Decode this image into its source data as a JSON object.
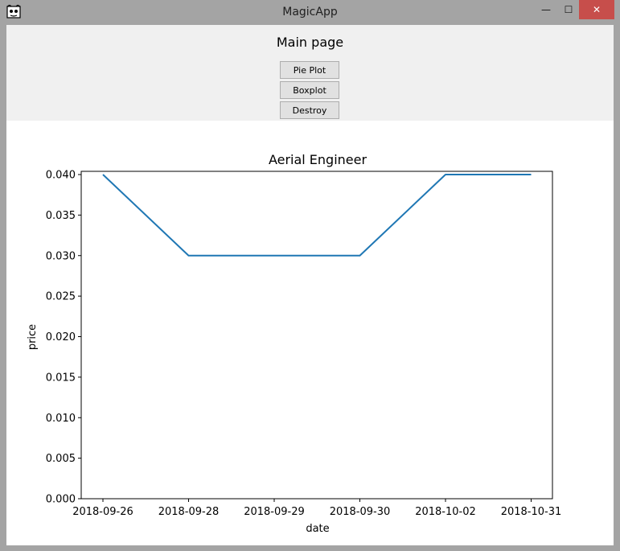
{
  "window": {
    "title": "MagicApp",
    "minimize_glyph": "—",
    "maximize_glyph": "☐",
    "close_glyph": "✕"
  },
  "panel": {
    "heading": "Main page",
    "buttons": [
      "Pie Plot",
      "Boxplot",
      "Destroy"
    ]
  },
  "colors": {
    "line": "#1f77b4",
    "close_button": "#c74e4b",
    "panel_bg": "#f0f0f0",
    "frame": "#a4a4a4"
  },
  "chart_data": {
    "type": "line",
    "title": "Aerial Engineer",
    "xlabel": "date",
    "ylabel": "price",
    "categories": [
      "2018-09-26",
      "2018-09-28",
      "2018-09-29",
      "2018-09-30",
      "2018-10-02",
      "2018-10-31"
    ],
    "values": [
      0.04,
      0.03,
      0.03,
      0.03,
      0.04,
      0.04
    ],
    "ylim": [
      0,
      0.04
    ],
    "yticks": [
      "0.000",
      "0.005",
      "0.010",
      "0.015",
      "0.020",
      "0.025",
      "0.030",
      "0.035",
      "0.040"
    ],
    "grid": false
  }
}
